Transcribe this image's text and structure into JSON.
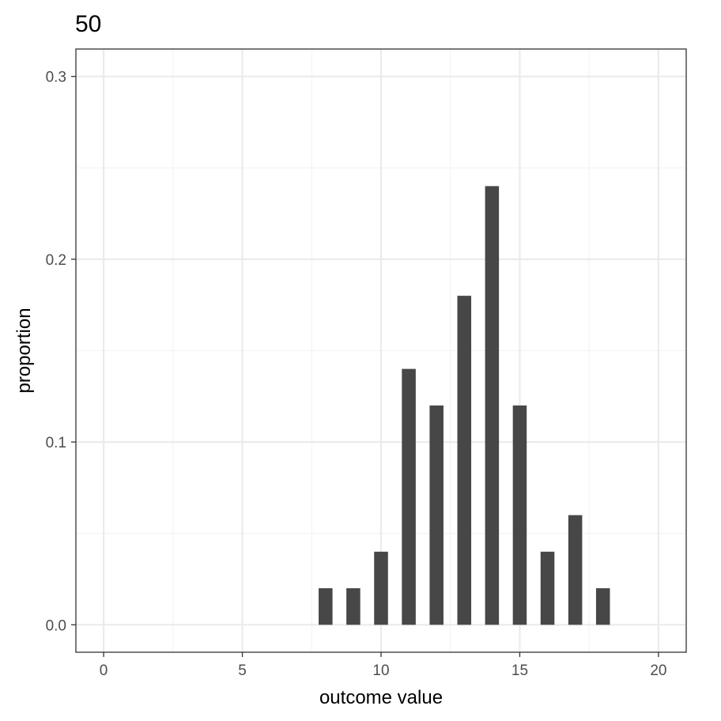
{
  "chart_data": {
    "type": "bar",
    "title": "50",
    "xlabel": "outcome value",
    "ylabel": "proportion",
    "x": [
      8,
      9,
      10,
      11,
      12,
      13,
      14,
      15,
      16,
      17,
      18
    ],
    "values": [
      0.02,
      0.02,
      0.04,
      0.14,
      0.12,
      0.18,
      0.24,
      0.12,
      0.04,
      0.06,
      0.02
    ],
    "xlim": [
      -1,
      21
    ],
    "ylim": [
      -0.015,
      0.315
    ],
    "xticks": [
      0,
      5,
      10,
      15,
      20
    ],
    "xtick_labels": [
      "0",
      "5",
      "10",
      "15",
      "20"
    ],
    "yticks": [
      0.0,
      0.1,
      0.2,
      0.3
    ],
    "ytick_labels": [
      "0.0",
      "0.1",
      "0.2",
      "0.3"
    ],
    "x_minor_ticks": [
      2.5,
      7.5,
      12.5,
      17.5
    ],
    "y_minor_ticks": [
      0.05,
      0.15,
      0.25
    ],
    "grid": true,
    "legend": "none",
    "bar_color": "#474747",
    "grid_color": "#ebebeb",
    "panel_border_color": "#333333",
    "theme": "bw"
  }
}
